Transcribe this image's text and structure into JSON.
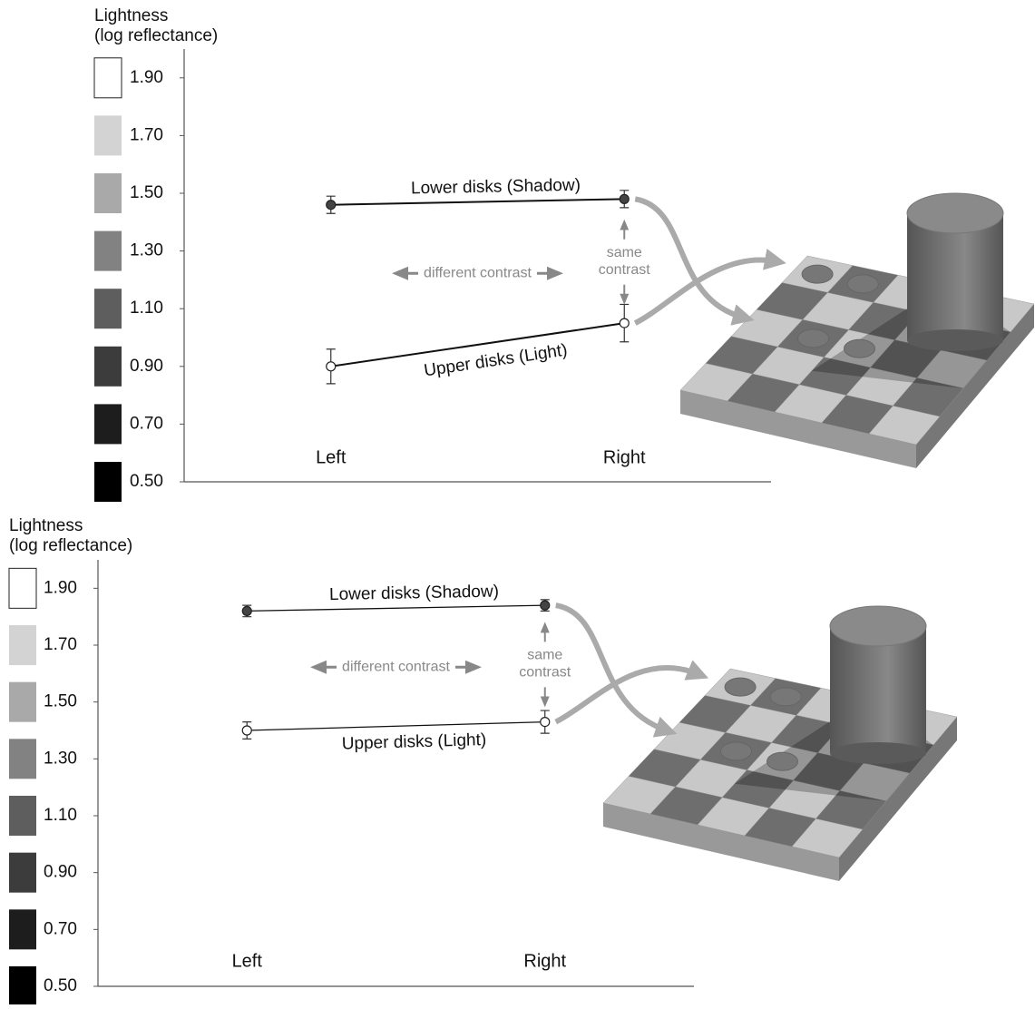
{
  "chart_data": [
    {
      "type": "line",
      "ylabel": [
        "Lightness",
        "(log reflectance)"
      ],
      "categories": [
        "Left",
        "Right"
      ],
      "ylim": [
        0.5,
        2.0
      ],
      "yticks": [
        {
          "value": 0.5,
          "label": "0.50"
        },
        {
          "value": 0.7,
          "label": "0.70"
        },
        {
          "value": 0.9,
          "label": "0.90"
        },
        {
          "value": 1.1,
          "label": "1.10"
        },
        {
          "value": 1.3,
          "label": "1.30"
        },
        {
          "value": 1.5,
          "label": "1.50"
        },
        {
          "value": 1.7,
          "label": "1.70"
        },
        {
          "value": 1.9,
          "label": "1.90"
        }
      ],
      "series": [
        {
          "name": "Lower disks (Shadow)",
          "color": "#111111",
          "marker_fill": "#444444",
          "values": [
            1.46,
            1.48
          ],
          "errors": [
            0.03,
            0.03
          ]
        },
        {
          "name": "Upper disks (Light)",
          "color": "#111111",
          "marker_fill": "#ffffff",
          "values": [
            0.9,
            1.05
          ],
          "errors": [
            0.06,
            0.065
          ]
        }
      ],
      "annotations": {
        "different_contrast": "different contrast",
        "same_contrast": [
          "same",
          "contrast"
        ]
      }
    },
    {
      "type": "line",
      "ylabel": [
        "Lightness",
        "(log reflectance)"
      ],
      "categories": [
        "Left",
        "Right"
      ],
      "ylim": [
        0.5,
        2.0
      ],
      "yticks": [
        {
          "value": 0.5,
          "label": "0.50"
        },
        {
          "value": 0.7,
          "label": "0.70"
        },
        {
          "value": 0.9,
          "label": "0.90"
        },
        {
          "value": 1.1,
          "label": "1.10"
        },
        {
          "value": 1.3,
          "label": "1.30"
        },
        {
          "value": 1.5,
          "label": "1.50"
        },
        {
          "value": 1.7,
          "label": "1.70"
        },
        {
          "value": 1.9,
          "label": "1.90"
        }
      ],
      "series": [
        {
          "name": "Lower disks (Shadow)",
          "color": "#111111",
          "marker_fill": "#444444",
          "values": [
            1.82,
            1.84
          ],
          "errors": [
            0.02,
            0.02
          ]
        },
        {
          "name": "Upper disks (Light)",
          "color": "#111111",
          "marker_fill": "#ffffff",
          "values": [
            1.4,
            1.43
          ],
          "errors": [
            0.03,
            0.04
          ]
        }
      ],
      "annotations": {
        "different_contrast": "different contrast",
        "same_contrast": [
          "same",
          "contrast"
        ]
      }
    }
  ]
}
